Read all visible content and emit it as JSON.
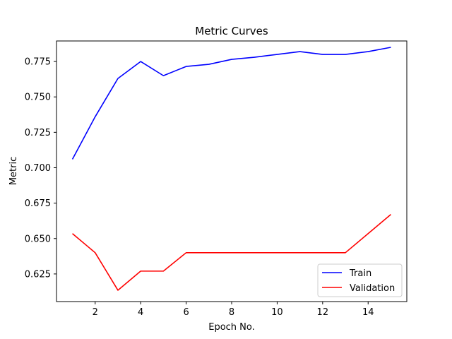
{
  "chart_data": {
    "type": "line",
    "title": "Metric Curves",
    "xlabel": "Epoch No.",
    "ylabel": "Metric",
    "xlim": [
      0.3,
      15.7
    ],
    "ylim": [
      0.6055,
      0.7895
    ],
    "x_ticks": [
      2,
      4,
      6,
      8,
      10,
      12,
      14
    ],
    "y_ticks": [
      0.625,
      0.65,
      0.675,
      0.7,
      0.725,
      0.75,
      0.775
    ],
    "x_tick_labels": [
      "2",
      "4",
      "6",
      "8",
      "10",
      "12",
      "14"
    ],
    "y_tick_labels": [
      "0.625",
      "0.650",
      "0.675",
      "0.700",
      "0.725",
      "0.750",
      "0.775"
    ],
    "grid": false,
    "legend": "lower-right",
    "x": [
      1,
      2,
      3,
      4,
      5,
      6,
      7,
      8,
      9,
      10,
      11,
      12,
      13,
      14,
      15
    ],
    "series": [
      {
        "name": "Train",
        "color": "#0000ff",
        "values": [
          0.706,
          0.736,
          0.763,
          0.775,
          0.765,
          0.7715,
          0.773,
          0.7765,
          0.778,
          0.78,
          0.782,
          0.78,
          0.78,
          0.782,
          0.785
        ]
      },
      {
        "name": "Validation",
        "color": "#ff0000",
        "values": [
          0.6535,
          0.64,
          0.6135,
          0.627,
          0.627,
          0.64,
          0.64,
          0.64,
          0.64,
          0.64,
          0.64,
          0.64,
          0.64,
          0.6535,
          0.667
        ]
      }
    ]
  }
}
